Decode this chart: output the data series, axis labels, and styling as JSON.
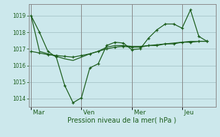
{
  "background_color": "#cce8ec",
  "grid_color": "#aac8cc",
  "line_color": "#1a5c1a",
  "xlabel": "Pression niveau de la mer( hPa )",
  "ylim": [
    1013.5,
    1019.7
  ],
  "yticks": [
    1014,
    1015,
    1016,
    1017,
    1018,
    1019
  ],
  "day_labels": [
    " Mar",
    " Ven",
    " Mer",
    " Jeu"
  ],
  "day_positions": [
    0,
    6,
    12,
    18
  ],
  "xlim": [
    -0.3,
    22.0
  ],
  "line1_x": [
    0,
    1,
    2,
    3,
    4,
    5,
    6,
    7,
    8,
    9,
    10,
    11,
    12,
    13,
    14,
    15,
    16,
    17,
    18,
    19,
    20,
    21
  ],
  "line1_y": [
    1019.0,
    1018.0,
    1016.85,
    1016.5,
    1014.8,
    1013.75,
    1014.05,
    1015.85,
    1016.1,
    1017.2,
    1017.4,
    1017.35,
    1016.95,
    1017.0,
    1017.65,
    1018.15,
    1018.5,
    1018.5,
    1018.25,
    1019.35,
    1017.75,
    1017.45
  ],
  "line2_x": [
    0,
    1,
    2,
    3,
    4,
    5,
    6,
    7,
    8,
    9,
    10,
    11,
    12,
    13,
    14,
    15,
    16,
    17,
    18,
    19,
    20,
    21
  ],
  "line2_y": [
    1016.85,
    1016.75,
    1016.65,
    1016.6,
    1016.55,
    1016.5,
    1016.6,
    1016.7,
    1016.85,
    1017.0,
    1017.1,
    1017.15,
    1017.1,
    1017.1,
    1017.2,
    1017.2,
    1017.3,
    1017.3,
    1017.4,
    1017.4,
    1017.45,
    1017.45
  ],
  "line3_x": [
    0,
    1,
    2,
    3,
    4,
    5,
    6,
    7,
    8,
    9,
    10,
    11,
    12,
    13,
    14,
    15,
    16,
    17,
    18,
    19,
    20,
    21
  ],
  "line3_y": [
    1019.0,
    1016.85,
    1016.7,
    1016.55,
    1016.4,
    1016.3,
    1016.5,
    1016.7,
    1016.85,
    1017.1,
    1017.2,
    1017.2,
    1017.15,
    1017.15,
    1017.2,
    1017.25,
    1017.3,
    1017.35,
    1017.4,
    1017.45,
    1017.45,
    1017.45
  ]
}
